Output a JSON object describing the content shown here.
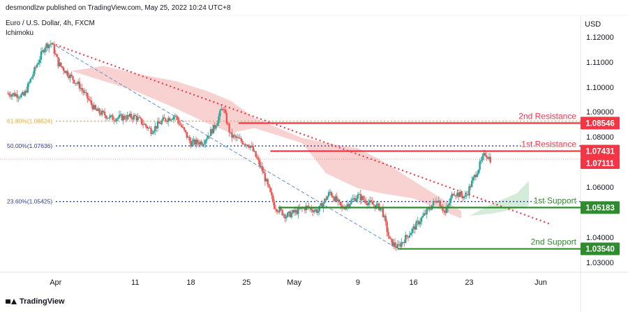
{
  "header": {
    "published": "desmondlzw published on TradingView.com, May 25, 2022 10:24 UTC+8",
    "symbol": "Euro / U.S. Dollar, 4h, FXCM",
    "indicator": "Ichimoku"
  },
  "footer": {
    "brand": "TradingView"
  },
  "colors": {
    "bull": "#26a69a",
    "bear": "#ef5350",
    "resistance": "#f23645",
    "support": "#2e8b2e",
    "fib618": "#f5a623",
    "fib_other": "#2a3c8f",
    "trend": "#f23645",
    "channel": "#5b8fd6",
    "cloud_bear": "#f7c9c9",
    "cloud_bull": "#cde8d4"
  },
  "chart_data": {
    "type": "candlestick",
    "currency": "USD",
    "y_ticks": [
      "1.12000",
      "1.11000",
      "1.10000",
      "1.09000",
      "1.08000",
      "1.06000",
      "1.04000",
      "1.03000"
    ],
    "x_ticks": [
      {
        "label": "Apr",
        "date": "2022-04-01"
      },
      {
        "label": "11",
        "date": "2022-04-11"
      },
      {
        "label": "18",
        "date": "2022-04-18"
      },
      {
        "label": "25",
        "date": "2022-04-25"
      },
      {
        "label": "May",
        "date": "2022-05-01"
      },
      {
        "label": "9",
        "date": "2022-05-09"
      },
      {
        "label": "16",
        "date": "2022-05-16"
      },
      {
        "label": "23",
        "date": "2022-05-23"
      },
      {
        "label": "Jun",
        "date": "2022-06-01"
      }
    ],
    "levels": [
      {
        "name": "2nd Resistance",
        "value": 1.08546,
        "value_label": "1.08546",
        "kind": "resistance"
      },
      {
        "name": "1st Resistance",
        "value": 1.07431,
        "value_label": "1.07431",
        "kind": "resistance"
      },
      {
        "name": "1st Support",
        "value": 1.05183,
        "value_label": "1.05183",
        "kind": "support"
      },
      {
        "name": "2nd Support",
        "value": 1.0354,
        "value_label": "1.03540",
        "kind": "support"
      }
    ],
    "current_price": {
      "value": 1.07111,
      "label": "1.07111"
    },
    "fib_levels": [
      {
        "label": "61.80%(1.08624)",
        "value": 1.08624
      },
      {
        "label": "50.00%(1.07636)",
        "value": 1.07636
      },
      {
        "label": "23.60%(1.05425)",
        "value": 1.05425
      }
    ],
    "price_path": [
      {
        "date": "2022-03-26T00:00",
        "price": 1.0975
      },
      {
        "date": "2022-03-28T00:00",
        "price": 1.0965
      },
      {
        "date": "2022-03-29T12:00",
        "price": 1.108
      },
      {
        "date": "2022-03-30T16:00",
        "price": 1.1165
      },
      {
        "date": "2022-03-31T12:00",
        "price": 1.1175
      },
      {
        "date": "2022-04-01T08:00",
        "price": 1.1095
      },
      {
        "date": "2022-04-04T00:00",
        "price": 1.1005
      },
      {
        "date": "2022-04-06T00:00",
        "price": 1.0905
      },
      {
        "date": "2022-04-08T00:00",
        "price": 1.0875
      },
      {
        "date": "2022-04-11T00:00",
        "price": 1.088
      },
      {
        "date": "2022-04-13T00:00",
        "price": 1.0825
      },
      {
        "date": "2022-04-14T12:00",
        "price": 1.0865
      },
      {
        "date": "2022-04-16T00:00",
        "price": 1.0885
      },
      {
        "date": "2022-04-18T00:00",
        "price": 1.0775
      },
      {
        "date": "2022-04-19T12:00",
        "price": 1.078
      },
      {
        "date": "2022-04-21T00:00",
        "price": 1.084
      },
      {
        "date": "2022-04-22T00:00",
        "price": 1.092
      },
      {
        "date": "2022-04-23T00:00",
        "price": 1.0805
      },
      {
        "date": "2022-04-25T12:00",
        "price": 1.0765
      },
      {
        "date": "2022-04-27T00:00",
        "price": 1.0665
      },
      {
        "date": "2022-04-28T12:00",
        "price": 1.0525
      },
      {
        "date": "2022-04-30T00:00",
        "price": 1.0485
      },
      {
        "date": "2022-05-02T12:00",
        "price": 1.052
      },
      {
        "date": "2022-05-04T00:00",
        "price": 1.0505
      },
      {
        "date": "2022-05-05T12:00",
        "price": 1.058
      },
      {
        "date": "2022-05-07T00:00",
        "price": 1.0515
      },
      {
        "date": "2022-05-09T00:00",
        "price": 1.0565
      },
      {
        "date": "2022-05-10T12:00",
        "price": 1.0535
      },
      {
        "date": "2022-05-12T00:00",
        "price": 1.0515
      },
      {
        "date": "2022-05-13T00:00",
        "price": 1.0385
      },
      {
        "date": "2022-05-14T00:00",
        "price": 1.036
      },
      {
        "date": "2022-05-16T00:00",
        "price": 1.0435
      },
      {
        "date": "2022-05-17T12:00",
        "price": 1.0495
      },
      {
        "date": "2022-05-19T00:00",
        "price": 1.0555
      },
      {
        "date": "2022-05-20T00:00",
        "price": 1.0495
      },
      {
        "date": "2022-05-21T00:00",
        "price": 1.058
      },
      {
        "date": "2022-05-22T12:00",
        "price": 1.056
      },
      {
        "date": "2022-05-24T00:00",
        "price": 1.0665
      },
      {
        "date": "2022-05-25T00:00",
        "price": 1.0735
      },
      {
        "date": "2022-05-25T16:00",
        "price": 1.0711
      }
    ],
    "trendline": {
      "start": {
        "date": "2022-03-31T12:00",
        "price": 1.1175
      },
      "end": {
        "date": "2022-06-01T00:00",
        "price": 1.046
      }
    },
    "channel_line": {
      "start": {
        "date": "2022-03-31T12:00",
        "price": 1.1175
      },
      "end": {
        "date": "2022-05-14T00:00",
        "price": 1.0355
      }
    },
    "ichimoku_cloud_bearish": [
      {
        "date": "2022-04-03T00:00",
        "a": 1.1065,
        "b": 1.1065
      },
      {
        "date": "2022-04-07T00:00",
        "a": 1.1025,
        "b": 1.1085
      },
      {
        "date": "2022-04-11T00:00",
        "a": 1.0985,
        "b": 1.1055
      },
      {
        "date": "2022-04-16T00:00",
        "a": 1.0915,
        "b": 1.1025
      },
      {
        "date": "2022-04-20T00:00",
        "a": 1.0855,
        "b": 1.0985
      },
      {
        "date": "2022-04-23T00:00",
        "a": 1.0815,
        "b": 1.0945
      },
      {
        "date": "2022-04-26T00:00",
        "a": 1.0835,
        "b": 1.0875
      },
      {
        "date": "2022-05-02T00:00",
        "a": 1.0775,
        "b": 1.0795
      },
      {
        "date": "2022-05-05T00:00",
        "a": 1.0655,
        "b": 1.0775
      },
      {
        "date": "2022-05-09T00:00",
        "a": 1.0595,
        "b": 1.0755
      },
      {
        "date": "2022-05-12T00:00",
        "a": 1.0575,
        "b": 1.0705
      },
      {
        "date": "2022-05-16T00:00",
        "a": 1.0555,
        "b": 1.0625
      },
      {
        "date": "2022-05-19T00:00",
        "a": 1.0515,
        "b": 1.0565
      },
      {
        "date": "2022-05-22T00:00",
        "a": 1.0475,
        "b": 1.0505
      }
    ],
    "ichimoku_cloud_bullish": [
      {
        "date": "2022-05-23T00:00",
        "a": 1.0485,
        "b": 1.0485
      },
      {
        "date": "2022-05-26T00:00",
        "a": 1.0535,
        "b": 1.0495
      },
      {
        "date": "2022-05-29T00:00",
        "a": 1.0575,
        "b": 1.0515
      },
      {
        "date": "2022-05-30T12:00",
        "a": 1.0625,
        "b": 1.0525
      }
    ]
  }
}
